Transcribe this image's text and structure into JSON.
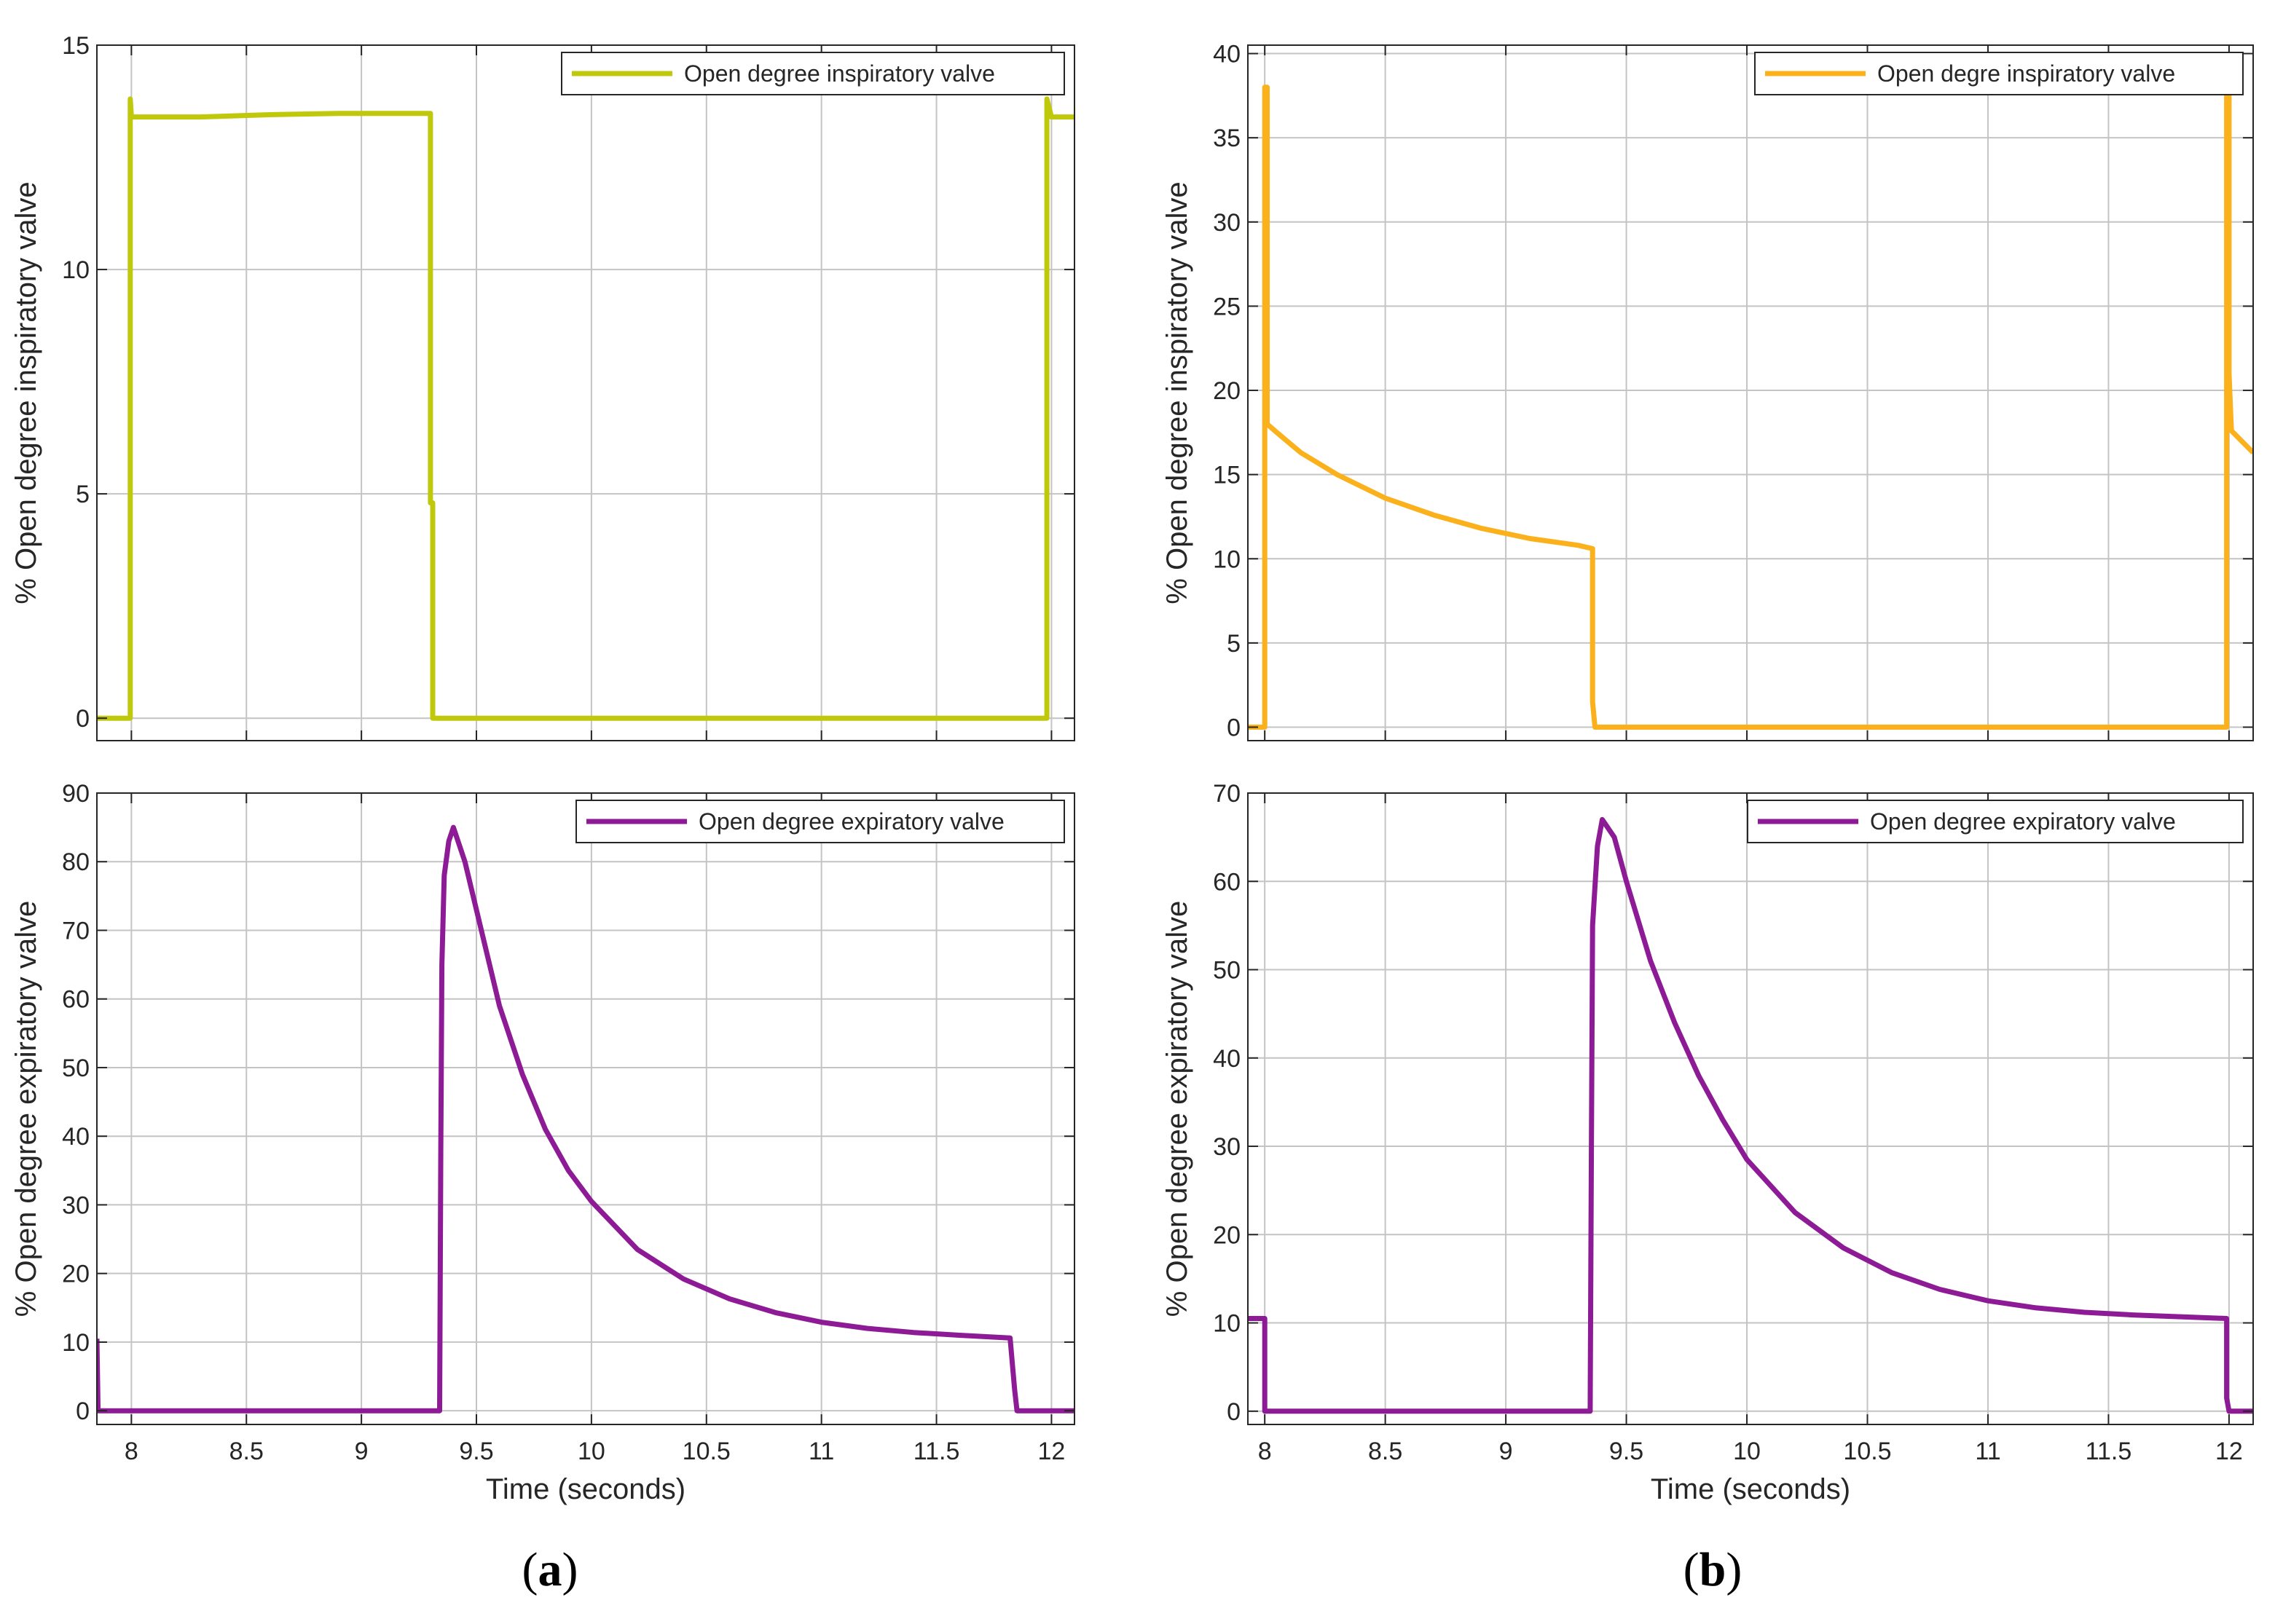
{
  "panel_labels": {
    "a": {
      "open": "(",
      "letter": "a",
      "close": ")"
    },
    "b": {
      "open": "(",
      "letter": "b",
      "close": ")"
    }
  },
  "chart_data": [
    {
      "id": "a-top",
      "type": "line",
      "panel": "a",
      "title": "",
      "xlabel": "",
      "ylabel": "% Open degree inspiratory valve",
      "xlim": [
        7.85,
        12.1
      ],
      "ylim": [
        -0.5,
        15
      ],
      "x_ticks": [
        8,
        8.5,
        9,
        9.5,
        10,
        10.5,
        11,
        11.5,
        12
      ],
      "x_tick_labels": [],
      "y_ticks": [
        0,
        5,
        10,
        15
      ],
      "y_tick_labels": [
        "0",
        "5",
        "10",
        "15"
      ],
      "grid": true,
      "legend": {
        "position": "top-right",
        "entries": [
          "Open degree  inspiratory valve"
        ]
      },
      "series": [
        {
          "name": "Open degree  inspiratory valve",
          "color": "#c0c80c",
          "points": [
            [
              7.85,
              0
            ],
            [
              7.995,
              0
            ],
            [
              7.995,
              13.8
            ],
            [
              8.0,
              13.4
            ],
            [
              8.3,
              13.4
            ],
            [
              8.6,
              13.45
            ],
            [
              8.9,
              13.48
            ],
            [
              9.3,
              13.48
            ],
            [
              9.3,
              4.8
            ],
            [
              9.31,
              4.8
            ],
            [
              9.31,
              0
            ],
            [
              11.98,
              0
            ],
            [
              11.98,
              13.8
            ],
            [
              12.0,
              13.4
            ],
            [
              12.1,
              13.4
            ]
          ]
        }
      ]
    },
    {
      "id": "a-bottom",
      "type": "line",
      "panel": "a",
      "title": "",
      "xlabel": "Time (seconds)",
      "ylabel": "% Open degree expiratory valve",
      "xlim": [
        7.85,
        12.1
      ],
      "ylim": [
        -2,
        90
      ],
      "x_ticks": [
        8,
        8.5,
        9,
        9.5,
        10,
        10.5,
        11,
        11.5,
        12
      ],
      "x_tick_labels": [
        "8",
        "8.5",
        "9",
        "9.5",
        "10",
        "10.5",
        "11",
        "11.5",
        "12"
      ],
      "y_ticks": [
        0,
        10,
        20,
        30,
        40,
        50,
        60,
        70,
        80,
        90
      ],
      "y_tick_labels": [
        "0",
        "10",
        "20",
        "30",
        "40",
        "50",
        "60",
        "70",
        "80",
        "90"
      ],
      "grid": true,
      "legend": {
        "position": "top-right",
        "entries": [
          "Open degree expiratory valve"
        ]
      },
      "series": [
        {
          "name": "Open degree expiratory valve",
          "color": "#8e1b96",
          "points": [
            [
              7.85,
              10.5
            ],
            [
              7.855,
              0
            ],
            [
              9.34,
              0
            ],
            [
              9.345,
              38
            ],
            [
              9.35,
              65
            ],
            [
              9.36,
              78
            ],
            [
              9.38,
              83
            ],
            [
              9.4,
              85
            ],
            [
              9.45,
              80
            ],
            [
              9.5,
              73
            ],
            [
              9.6,
              59
            ],
            [
              9.7,
              49
            ],
            [
              9.8,
              41
            ],
            [
              9.9,
              35
            ],
            [
              10.0,
              30.5
            ],
            [
              10.2,
              23.5
            ],
            [
              10.4,
              19.2
            ],
            [
              10.6,
              16.3
            ],
            [
              10.8,
              14.3
            ],
            [
              11.0,
              12.9
            ],
            [
              11.2,
              12.0
            ],
            [
              11.4,
              11.4
            ],
            [
              11.6,
              11.0
            ],
            [
              11.82,
              10.6
            ],
            [
              11.82,
              10.6
            ],
            [
              11.84,
              3
            ],
            [
              11.85,
              0
            ],
            [
              12.1,
              0
            ]
          ]
        }
      ]
    },
    {
      "id": "b-top",
      "type": "line",
      "panel": "b",
      "title": "",
      "xlabel": "",
      "ylabel": "% Open degree inspiratory valve",
      "xlim": [
        7.93,
        12.1
      ],
      "ylim": [
        -0.8,
        40.5
      ],
      "x_ticks": [
        8,
        8.5,
        9,
        9.5,
        10,
        10.5,
        11,
        11.5,
        12
      ],
      "x_tick_labels": [],
      "y_ticks": [
        0,
        5,
        10,
        15,
        20,
        25,
        30,
        35,
        40
      ],
      "y_tick_labels": [
        "0",
        "5",
        "10",
        "15",
        "20",
        "25",
        "30",
        "35",
        "40"
      ],
      "grid": true,
      "legend": {
        "position": "top-right",
        "entries": [
          "Open degre inspiratory valve"
        ]
      },
      "series": [
        {
          "name": "Open degre inspiratory valve",
          "color": "#fbb11b",
          "points": [
            [
              7.93,
              0
            ],
            [
              8.0,
              0
            ],
            [
              8.0,
              38
            ],
            [
              8.01,
              38
            ],
            [
              8.01,
              18
            ],
            [
              8.05,
              17.5
            ],
            [
              8.15,
              16.3
            ],
            [
              8.3,
              15
            ],
            [
              8.5,
              13.6
            ],
            [
              8.7,
              12.6
            ],
            [
              8.9,
              11.8
            ],
            [
              9.1,
              11.2
            ],
            [
              9.3,
              10.8
            ],
            [
              9.36,
              10.6
            ],
            [
              9.36,
              1.5
            ],
            [
              9.37,
              0
            ],
            [
              11.99,
              0
            ],
            [
              11.99,
              38
            ],
            [
              12.0,
              38
            ],
            [
              12.0,
              21
            ],
            [
              12.01,
              17.6
            ],
            [
              12.1,
              16.3
            ]
          ]
        }
      ]
    },
    {
      "id": "b-bottom",
      "type": "line",
      "panel": "b",
      "title": "",
      "xlabel": "Time (seconds)",
      "ylabel": "% Open degree expiratory valve",
      "xlim": [
        7.93,
        12.1
      ],
      "ylim": [
        -1.5,
        70
      ],
      "x_ticks": [
        8,
        8.5,
        9,
        9.5,
        10,
        10.5,
        11,
        11.5,
        12
      ],
      "x_tick_labels": [
        "8",
        "8.5",
        "9",
        "9.5",
        "10",
        "10.5",
        "11",
        "11.5",
        "12"
      ],
      "y_ticks": [
        0,
        10,
        20,
        30,
        40,
        50,
        60,
        70
      ],
      "y_tick_labels": [
        "0",
        "10",
        "20",
        "30",
        "40",
        "50",
        "60",
        "70"
      ],
      "grid": true,
      "legend": {
        "position": "top-right",
        "entries": [
          "Open degree expiratory valve"
        ]
      },
      "series": [
        {
          "name": "Open degree expiratory valve",
          "color": "#8e1b96",
          "points": [
            [
              7.93,
              10.5
            ],
            [
              8.0,
              10.5
            ],
            [
              8.0,
              0
            ],
            [
              9.35,
              0
            ],
            [
              9.355,
              30
            ],
            [
              9.36,
              55
            ],
            [
              9.38,
              64
            ],
            [
              9.4,
              67
            ],
            [
              9.45,
              65
            ],
            [
              9.5,
              60
            ],
            [
              9.6,
              51
            ],
            [
              9.7,
              44
            ],
            [
              9.8,
              38
            ],
            [
              9.9,
              33
            ],
            [
              10.0,
              28.5
            ],
            [
              10.2,
              22.5
            ],
            [
              10.4,
              18.5
            ],
            [
              10.6,
              15.7
            ],
            [
              10.8,
              13.8
            ],
            [
              11.0,
              12.5
            ],
            [
              11.2,
              11.7
            ],
            [
              11.4,
              11.2
            ],
            [
              11.6,
              10.9
            ],
            [
              11.99,
              10.5
            ],
            [
              11.99,
              1.5
            ],
            [
              12.0,
              0
            ],
            [
              12.1,
              0
            ]
          ]
        }
      ]
    }
  ]
}
